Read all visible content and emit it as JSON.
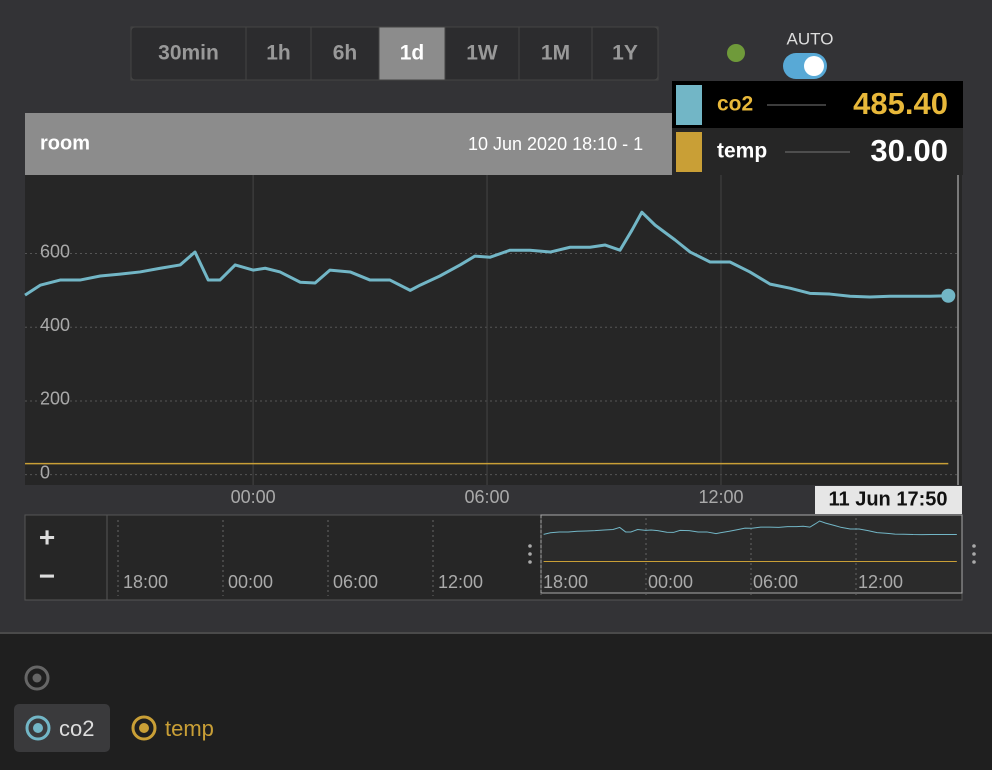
{
  "toolbar": {
    "ranges": [
      "30min",
      "1h",
      "6h",
      "1d",
      "1W",
      "1M",
      "1Y"
    ],
    "active": 3,
    "auto_label": "AUTO",
    "auto": true
  },
  "tooltip": {
    "rows": [
      {
        "name": "co2",
        "value": "485.40",
        "color": "#72b6c6"
      },
      {
        "name": "temp",
        "value": "30.00",
        "color": "#c99f36"
      }
    ]
  },
  "chart_data": {
    "type": "line",
    "title": "room",
    "subtitle": "10 Jun 2020 18:10 - 1",
    "cursor_label": "11 Jun 17:50",
    "xlim": [
      -5.85,
      18.13
    ],
    "ylim": [
      -28,
      813
    ],
    "xticks": [
      {
        "value": 0,
        "label": "00:00"
      },
      {
        "value": 6,
        "label": "06:00"
      },
      {
        "value": 12,
        "label": "12:00"
      }
    ],
    "yticks": [
      0,
      200,
      400,
      600
    ],
    "grid": true,
    "series": [
      {
        "name": "co2",
        "color": "#72b6c6",
        "x": [
          -5.85,
          -5.46,
          -4.95,
          -4.44,
          -3.92,
          -3.41,
          -2.9,
          -2.38,
          -1.87,
          -1.49,
          -1.15,
          -0.85,
          -0.46,
          0,
          0.31,
          0.69,
          1.21,
          1.59,
          1.97,
          2.49,
          3,
          3.51,
          4.03,
          4.28,
          4.79,
          5.31,
          5.69,
          6.08,
          6.59,
          7.1,
          7.62,
          8.13,
          8.64,
          9.03,
          9.41,
          9.72,
          9.97,
          10.31,
          10.82,
          11.21,
          11.72,
          12.23,
          12.74,
          13.26,
          13.77,
          14.28,
          14.79,
          15.31,
          15.82,
          16.33,
          16.85,
          17.36,
          17.83
        ],
        "values": [
          487,
          514,
          528,
          528,
          539,
          544,
          550,
          560,
          569,
          604,
          528,
          528,
          569,
          555,
          560,
          550,
          522,
          520,
          555,
          550,
          528,
          528,
          500,
          514,
          539,
          569,
          593,
          590,
          609,
          609,
          604,
          617,
          617,
          623,
          609,
          664,
          712,
          677,
          637,
          604,
          577,
          577,
          550,
          517,
          506,
          492,
          490,
          484,
          482,
          484,
          484,
          484,
          485.4
        ]
      },
      {
        "name": "temp",
        "color": "#c99f36",
        "x": [
          -5.85,
          17.83
        ],
        "values": [
          30,
          30
        ]
      }
    ]
  },
  "navigator": {
    "zoom_in": "+",
    "zoom_out": "−",
    "ticks": [
      "18:00",
      "00:00",
      "06:00",
      "12:00"
    ],
    "preview_ticks": [
      "18:00",
      "00:00",
      "06:00",
      "12:00"
    ]
  },
  "legend": {
    "items": [
      "co2",
      "temp"
    ]
  }
}
